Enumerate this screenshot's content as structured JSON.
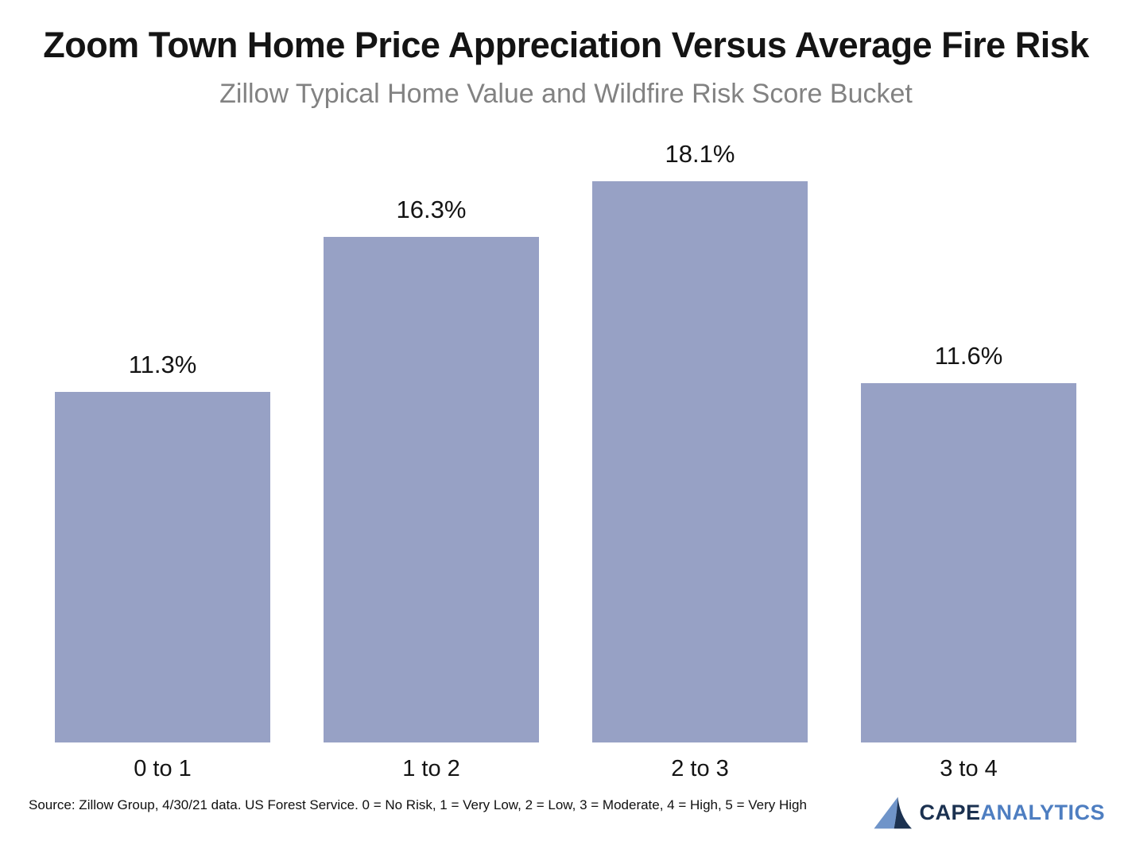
{
  "title": "Zoom Town Home Price Appreciation Versus Average Fire Risk",
  "subtitle": "Zillow Typical Home Value and Wildfire Risk Score Bucket",
  "chart_data": {
    "type": "bar",
    "categories": [
      "0 to 1",
      "1 to 2",
      "2 to 3",
      "3 to 4"
    ],
    "values": [
      11.3,
      16.3,
      18.1,
      11.6
    ],
    "value_labels": [
      "11.3%",
      "16.3%",
      "18.1%",
      "11.6%"
    ],
    "title": "Zoom Town Home Price Appreciation Versus Average Fire Risk",
    "subtitle": "Zillow Typical Home Value and Wildfire Risk Score Bucket",
    "xlabel": "",
    "ylabel": "",
    "ylim": [
      0,
      20
    ],
    "grid": false,
    "legend": "none",
    "bar_color": "#97A1C5"
  },
  "footer": {
    "source": "Source: Zillow Group, 4/30/21 data. US Forest Service. 0 = No Risk, 1 = Very Low, 2 = Low, 3 = Moderate, 4 = High, 5 = Very High",
    "logo": {
      "brand_primary": "CAPE",
      "brand_secondary": "ANALYTICS",
      "colors": {
        "dark": "#1B3150",
        "light": "#4E7EC1",
        "mark_light": "#6F94C9"
      }
    }
  }
}
